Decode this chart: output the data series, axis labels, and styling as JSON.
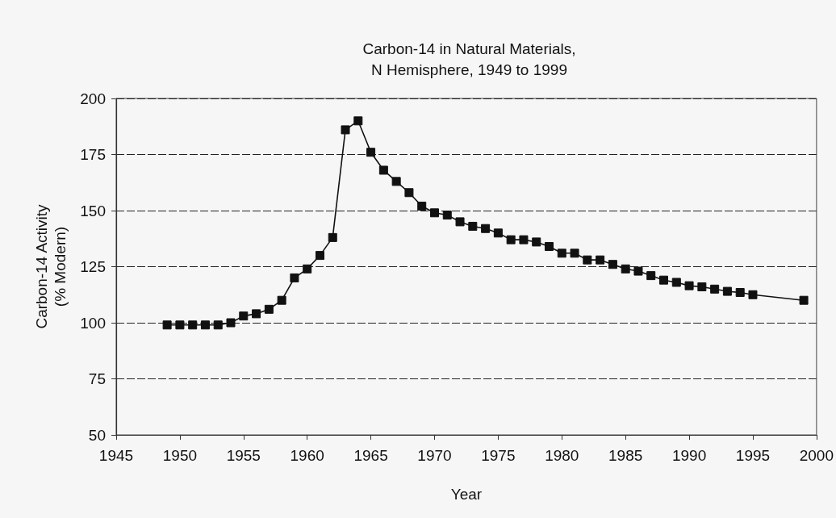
{
  "chart_data": {
    "type": "line",
    "title": "Carbon-14 in Natural Materials,\nN Hemisphere, 1949 to 1999",
    "xlabel": "Year",
    "ylabel": "Carbon-14 Activity\n(% Modern)",
    "x": [
      1949,
      1950,
      1951,
      1952,
      1953,
      1954,
      1955,
      1956,
      1957,
      1958,
      1959,
      1960,
      1961,
      1962,
      1963,
      1964,
      1965,
      1966,
      1967,
      1968,
      1969,
      1970,
      1971,
      1972,
      1973,
      1974,
      1975,
      1976,
      1977,
      1978,
      1979,
      1980,
      1981,
      1982,
      1983,
      1984,
      1985,
      1986,
      1987,
      1988,
      1989,
      1990,
      1991,
      1992,
      1993,
      1994,
      1995,
      1999
    ],
    "values": [
      99,
      99,
      99,
      99,
      99,
      100,
      103,
      104,
      106,
      110,
      120,
      124,
      130,
      138,
      186,
      190,
      176,
      168,
      163,
      158,
      152,
      149,
      148,
      145,
      143,
      142,
      140,
      137,
      137,
      136,
      134,
      131,
      131,
      128,
      128,
      126,
      124,
      123,
      121,
      119,
      118,
      116.5,
      116,
      115,
      114,
      113.5,
      112.5,
      110
    ],
    "color": "#111111",
    "marker": "square",
    "line_style": "solid",
    "xlim": [
      1945,
      2000
    ],
    "xticks": [
      1945,
      1950,
      1955,
      1960,
      1965,
      1970,
      1975,
      1980,
      1985,
      1990,
      1995,
      2000
    ],
    "ylim": [
      50,
      200
    ],
    "yticks": [
      50,
      75,
      100,
      125,
      150,
      175,
      200
    ],
    "grid": "y"
  }
}
